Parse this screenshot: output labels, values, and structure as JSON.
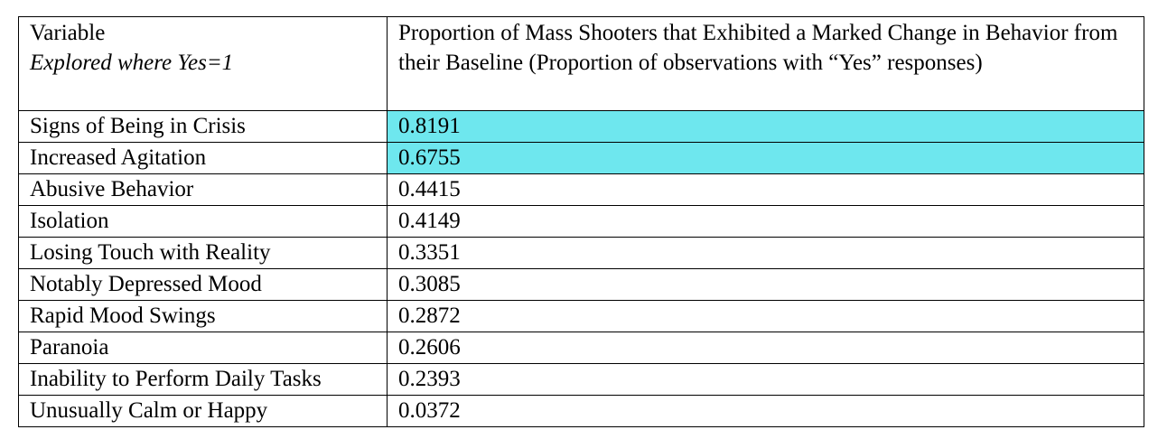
{
  "table": {
    "header": {
      "col1": "Variable",
      "col1_sub": "Explored where Yes=1",
      "col2": "Proportion of Mass Shooters that Exhibited a Marked Change in Behavior from their Baseline (Proportion of observations with “Yes” responses)"
    },
    "highlight_color": "#6ee7ee",
    "rows": [
      {
        "variable": "Signs of Being in Crisis",
        "value": "0.8191",
        "highlighted": true
      },
      {
        "variable": "Increased Agitation",
        "value": "0.6755",
        "highlighted": true
      },
      {
        "variable": "Abusive Behavior",
        "value": "0.4415",
        "highlighted": false
      },
      {
        "variable": "Isolation",
        "value": "0.4149",
        "highlighted": false
      },
      {
        "variable": "Losing Touch with Reality",
        "value": "0.3351",
        "highlighted": false
      },
      {
        "variable": "Notably Depressed Mood",
        "value": "0.3085",
        "highlighted": false
      },
      {
        "variable": "Rapid Mood Swings",
        "value": "0.2872",
        "highlighted": false
      },
      {
        "variable": "Paranoia",
        "value": "0.2606",
        "highlighted": false
      },
      {
        "variable": "Inability to Perform Daily Tasks",
        "value": "0.2393",
        "highlighted": false
      },
      {
        "variable": "Unusually Calm or Happy",
        "value": "0.0372",
        "highlighted": false
      }
    ]
  }
}
